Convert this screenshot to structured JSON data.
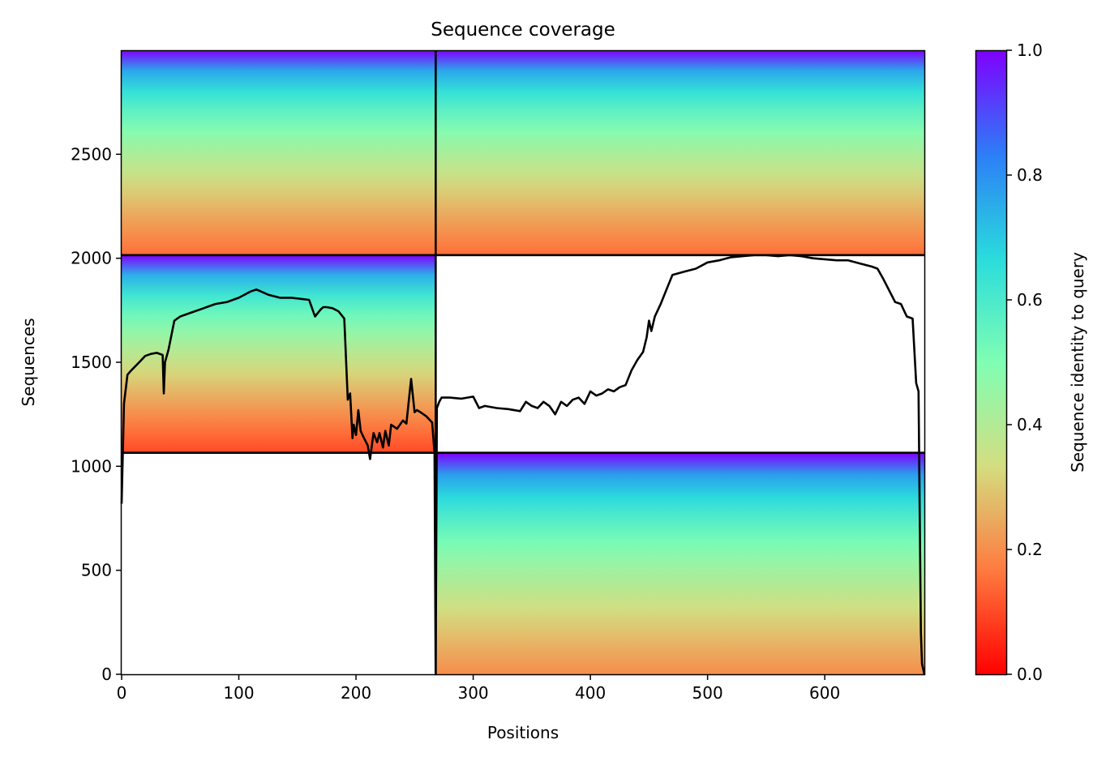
{
  "chart_data": {
    "type": "heatmap",
    "title": "Sequence coverage",
    "xlabel": "Positions",
    "ylabel": "Sequences",
    "xlim": [
      0,
      685
    ],
    "ylim": [
      0,
      3000
    ],
    "xticks": [
      0,
      100,
      200,
      300,
      400,
      500,
      600
    ],
    "yticks": [
      0,
      500,
      1000,
      1500,
      2000,
      2500
    ],
    "colorbar": {
      "label": "Sequence identity to query",
      "colormap": "rainbow_r",
      "range": [
        0,
        1
      ],
      "ticks": [
        "0.0",
        "0.2",
        "0.4",
        "0.6",
        "0.8",
        "1.0"
      ],
      "colors": [
        "#ff0000",
        "#ff7a3f",
        "#d4dd80",
        "#80feb3",
        "#2adcdc",
        "#2c7ef7",
        "#7f00ff"
      ]
    },
    "chain_boundary_x": 268,
    "blocks": [
      {
        "name": "chain-A-only",
        "x": [
          0,
          268
        ],
        "y": [
          1065,
          2015
        ],
        "identity_top": 1.0,
        "identity_bottom": 0.1
      },
      {
        "name": "chain-B-only",
        "x": [
          268,
          685
        ],
        "y": [
          0,
          1065
        ],
        "identity_top": 1.0,
        "identity_bottom": 0.2
      },
      {
        "name": "paired",
        "x": [
          0,
          685
        ],
        "y": [
          2015,
          3000
        ],
        "identity_top": 1.0,
        "identity_bottom": 0.15
      }
    ],
    "coverage_line": {
      "x": [
        0,
        2,
        5,
        8,
        15,
        20,
        25,
        30,
        35,
        36,
        37,
        38,
        40,
        45,
        50,
        60,
        70,
        80,
        90,
        100,
        110,
        115,
        125,
        135,
        145,
        160,
        165,
        170,
        172,
        175,
        180,
        185,
        190,
        193,
        195,
        197,
        198,
        200,
        202,
        204,
        206,
        210,
        212,
        215,
        218,
        220,
        223,
        225,
        228,
        230,
        235,
        240,
        243,
        247,
        250,
        252,
        255,
        260,
        265,
        267,
        268,
        269,
        271,
        273,
        275,
        280,
        290,
        300,
        305,
        310,
        320,
        330,
        340,
        345,
        350,
        355,
        360,
        365,
        370,
        375,
        380,
        385,
        390,
        395,
        400,
        405,
        410,
        415,
        420,
        425,
        430,
        435,
        440,
        445,
        448,
        450,
        452,
        455,
        460,
        465,
        470,
        480,
        490,
        500,
        510,
        520,
        530,
        540,
        550,
        560,
        570,
        580,
        590,
        600,
        610,
        620,
        630,
        640,
        645,
        650,
        660,
        665,
        670,
        675,
        678,
        680,
        682,
        683,
        685
      ],
      "y": [
        820,
        1300,
        1440,
        1460,
        1500,
        1530,
        1540,
        1545,
        1535,
        1350,
        1500,
        1520,
        1560,
        1700,
        1720,
        1740,
        1760,
        1780,
        1790,
        1810,
        1840,
        1850,
        1825,
        1810,
        1810,
        1800,
        1720,
        1755,
        1765,
        1765,
        1760,
        1745,
        1710,
        1320,
        1350,
        1135,
        1200,
        1150,
        1270,
        1170,
        1145,
        1100,
        1035,
        1160,
        1115,
        1160,
        1090,
        1170,
        1100,
        1200,
        1180,
        1220,
        1205,
        1420,
        1260,
        1270,
        1260,
        1240,
        1210,
        1060,
        0,
        1280,
        1310,
        1330,
        1330,
        1330,
        1325,
        1335,
        1280,
        1290,
        1280,
        1275,
        1265,
        1310,
        1290,
        1280,
        1310,
        1290,
        1250,
        1310,
        1290,
        1320,
        1330,
        1300,
        1360,
        1340,
        1350,
        1370,
        1360,
        1380,
        1390,
        1460,
        1510,
        1550,
        1620,
        1700,
        1650,
        1720,
        1780,
        1850,
        1920,
        1935,
        1950,
        1980,
        1990,
        2005,
        2010,
        2015,
        2015,
        2010,
        2015,
        2010,
        2000,
        1995,
        1990,
        1990,
        1975,
        1960,
        1950,
        1900,
        1790,
        1780,
        1720,
        1710,
        1400,
        1360,
        200,
        50,
        0
      ]
    }
  }
}
